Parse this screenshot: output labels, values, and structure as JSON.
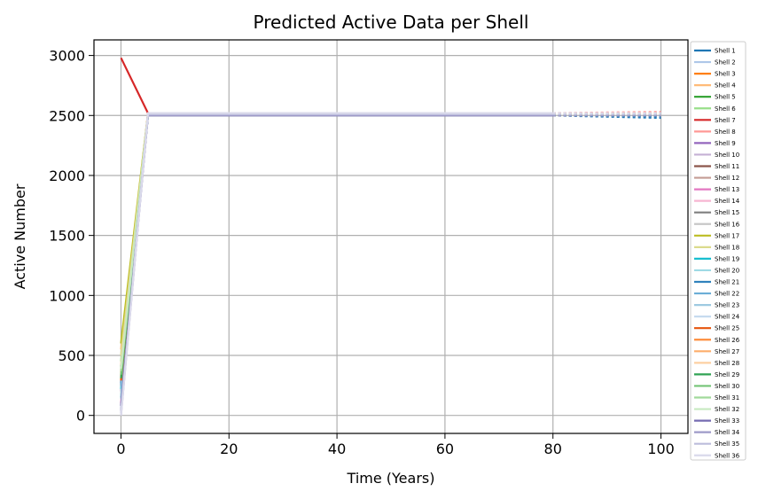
{
  "chart_data": {
    "type": "line",
    "title": "Predicted Active Data per Shell",
    "xlabel": "Time (Years)",
    "ylabel": "Active Number",
    "xlim": [
      -5,
      105
    ],
    "ylim": [
      -150,
      3130
    ],
    "xticks": [
      0,
      20,
      40,
      60,
      80,
      100
    ],
    "yticks": [
      0,
      500,
      1000,
      1500,
      2000,
      2500,
      3000
    ],
    "grid": true,
    "legend_position": "outside-right",
    "predicted_segment_style": "dotted",
    "series": [
      {
        "name": "Shell 1",
        "color": "#1f77b4",
        "x": [
          0,
          5,
          80,
          100
        ],
        "y": [
          270,
          2500,
          2500,
          2480
        ]
      },
      {
        "name": "Shell 2",
        "color": "#aec7e8",
        "x": [
          0,
          5,
          80,
          100
        ],
        "y": [
          150,
          2510,
          2510,
          2500
        ]
      },
      {
        "name": "Shell 3",
        "color": "#ff7f0e",
        "x": [
          0,
          5,
          80,
          100
        ],
        "y": [
          300,
          2510,
          2510,
          2520
        ]
      },
      {
        "name": "Shell 4",
        "color": "#ffbb78",
        "x": [
          0,
          5,
          80,
          100
        ],
        "y": [
          550,
          2510,
          2510,
          2510
        ]
      },
      {
        "name": "Shell 5",
        "color": "#2ca02c",
        "x": [
          0,
          5,
          80,
          100
        ],
        "y": [
          400,
          2500,
          2500,
          2500
        ]
      },
      {
        "name": "Shell 6",
        "color": "#98df8a",
        "x": [
          0,
          5,
          80,
          100
        ],
        "y": [
          450,
          2510,
          2510,
          2510
        ]
      },
      {
        "name": "Shell 7",
        "color": "#d62728",
        "x": [
          0,
          5,
          80,
          100
        ],
        "y": [
          2980,
          2520,
          2520,
          2510
        ]
      },
      {
        "name": "Shell 8",
        "color": "#ff9896",
        "x": [
          0,
          5,
          80,
          100
        ],
        "y": [
          380,
          2520,
          2520,
          2530
        ]
      },
      {
        "name": "Shell 9",
        "color": "#9467bd",
        "x": [
          0,
          5,
          80,
          100
        ],
        "y": [
          200,
          2500,
          2500,
          2500
        ]
      },
      {
        "name": "Shell 10",
        "color": "#c5b0d5",
        "x": [
          0,
          5,
          80,
          100
        ],
        "y": [
          0,
          2510,
          2510,
          2510
        ]
      },
      {
        "name": "Shell 11",
        "color": "#8c564b",
        "x": [
          0,
          5,
          80,
          100
        ],
        "y": [
          250,
          2500,
          2500,
          2500
        ]
      },
      {
        "name": "Shell 12",
        "color": "#c49c94",
        "x": [
          0,
          5,
          80,
          100
        ],
        "y": [
          320,
          2510,
          2510,
          2510
        ]
      },
      {
        "name": "Shell 13",
        "color": "#e377c2",
        "x": [
          0,
          5,
          80,
          100
        ],
        "y": [
          100,
          2500,
          2500,
          2500
        ]
      },
      {
        "name": "Shell 14",
        "color": "#f7b6d2",
        "x": [
          0,
          5,
          80,
          100
        ],
        "y": [
          120,
          2510,
          2510,
          2510
        ]
      },
      {
        "name": "Shell 15",
        "color": "#7f7f7f",
        "x": [
          0,
          5,
          80,
          100
        ],
        "y": [
          150,
          2500,
          2500,
          2500
        ]
      },
      {
        "name": "Shell 16",
        "color": "#c7c7c7",
        "x": [
          0,
          5,
          80,
          100
        ],
        "y": [
          180,
          2500,
          2500,
          2500
        ]
      },
      {
        "name": "Shell 17",
        "color": "#bcbd22",
        "x": [
          0,
          5,
          80,
          100
        ],
        "y": [
          600,
          2510,
          2510,
          2510
        ]
      },
      {
        "name": "Shell 18",
        "color": "#dbdb8d",
        "x": [
          0,
          5,
          80,
          100
        ],
        "y": [
          500,
          2510,
          2510,
          2510
        ]
      },
      {
        "name": "Shell 19",
        "color": "#17becf",
        "x": [
          0,
          5,
          80,
          100
        ],
        "y": [
          220,
          2500,
          2500,
          2500
        ]
      },
      {
        "name": "Shell 20",
        "color": "#9edae5",
        "x": [
          0,
          5,
          80,
          100
        ],
        "y": [
          160,
          2500,
          2500,
          2500
        ]
      },
      {
        "name": "Shell 21",
        "color": "#3182bd",
        "x": [
          0,
          5,
          80,
          100
        ],
        "y": [
          260,
          2500,
          2500,
          2490
        ]
      },
      {
        "name": "Shell 22",
        "color": "#6baed6",
        "x": [
          0,
          5,
          80,
          100
        ],
        "y": [
          240,
          2500,
          2500,
          2500
        ]
      },
      {
        "name": "Shell 23",
        "color": "#9ecae1",
        "x": [
          0,
          5,
          80,
          100
        ],
        "y": [
          140,
          2500,
          2500,
          2500
        ]
      },
      {
        "name": "Shell 24",
        "color": "#c6dbef",
        "x": [
          0,
          5,
          80,
          100
        ],
        "y": [
          60,
          2510,
          2510,
          2510
        ]
      },
      {
        "name": "Shell 25",
        "color": "#e6550d",
        "x": [
          0,
          5,
          80,
          100
        ],
        "y": [
          290,
          2510,
          2510,
          2510
        ]
      },
      {
        "name": "Shell 26",
        "color": "#fd8d3c",
        "x": [
          0,
          5,
          80,
          100
        ],
        "y": [
          330,
          2510,
          2510,
          2520
        ]
      },
      {
        "name": "Shell 27",
        "color": "#fdae6b",
        "x": [
          0,
          5,
          80,
          100
        ],
        "y": [
          360,
          2510,
          2510,
          2510
        ]
      },
      {
        "name": "Shell 28",
        "color": "#fdd0a2",
        "x": [
          0,
          5,
          80,
          100
        ],
        "y": [
          420,
          2510,
          2510,
          2510
        ]
      },
      {
        "name": "Shell 29",
        "color": "#31a354",
        "x": [
          0,
          5,
          80,
          100
        ],
        "y": [
          310,
          2500,
          2500,
          2500
        ]
      },
      {
        "name": "Shell 30",
        "color": "#74c476",
        "x": [
          0,
          5,
          80,
          100
        ],
        "y": [
          340,
          2500,
          2500,
          2500
        ]
      },
      {
        "name": "Shell 31",
        "color": "#a1d99b",
        "x": [
          0,
          5,
          80,
          100
        ],
        "y": [
          370,
          2510,
          2510,
          2510
        ]
      },
      {
        "name": "Shell 32",
        "color": "#c7e9c0",
        "x": [
          0,
          5,
          80,
          100
        ],
        "y": [
          390,
          2510,
          2510,
          2510
        ]
      },
      {
        "name": "Shell 33",
        "color": "#756bb1",
        "x": [
          0,
          5,
          80,
          100
        ],
        "y": [
          80,
          2500,
          2500,
          2500
        ]
      },
      {
        "name": "Shell 34",
        "color": "#9e9ac8",
        "x": [
          0,
          5,
          80,
          100
        ],
        "y": [
          40,
          2500,
          2500,
          2500
        ]
      },
      {
        "name": "Shell 35",
        "color": "#bcbddc",
        "x": [
          0,
          5,
          80,
          100
        ],
        "y": [
          20,
          2510,
          2510,
          2510
        ]
      },
      {
        "name": "Shell 36",
        "color": "#dadaeb",
        "x": [
          0,
          5,
          80,
          100
        ],
        "y": [
          0,
          2520,
          2520,
          2520
        ]
      }
    ]
  }
}
